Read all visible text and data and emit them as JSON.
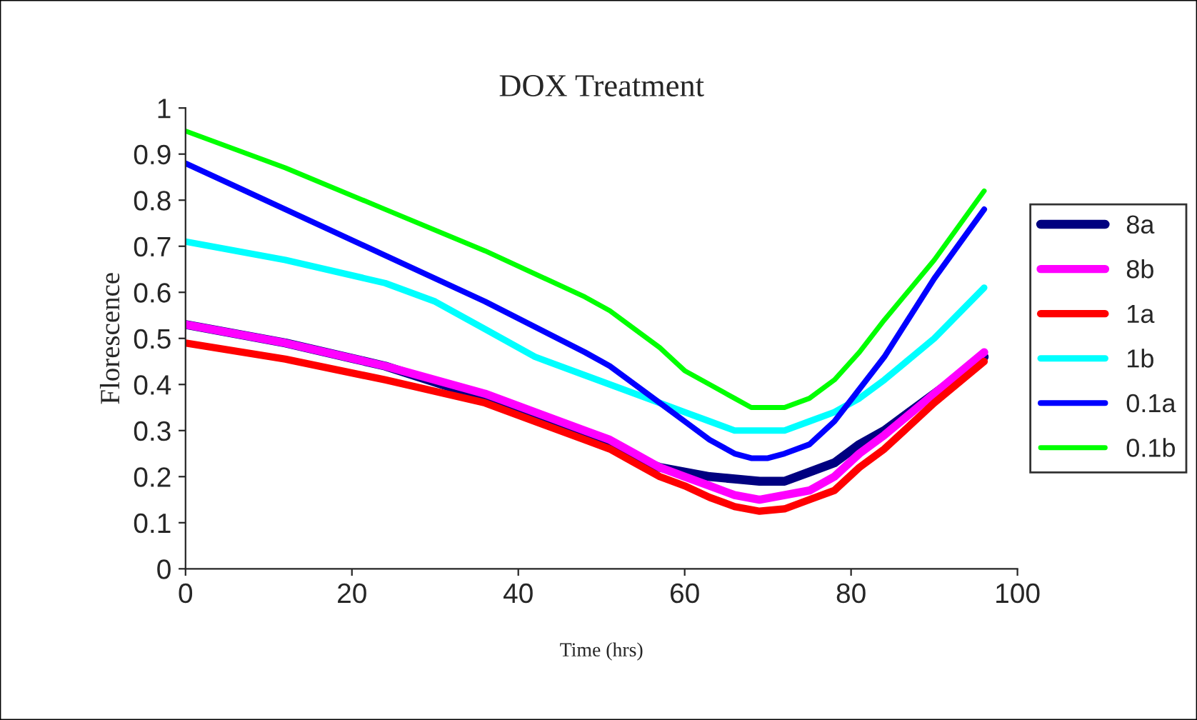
{
  "chart_data": {
    "type": "line",
    "title": "DOX Treatment",
    "xlabel": "Time (hrs)",
    "ylabel": "Florescence",
    "xlim": [
      0,
      100
    ],
    "xticks": [
      0,
      20,
      40,
      60,
      80,
      100
    ],
    "ylim": [
      0,
      1
    ],
    "yticks": [
      0,
      0.1,
      0.2,
      0.3,
      0.4,
      0.5,
      0.6,
      0.7,
      0.8,
      0.9,
      1
    ],
    "grid": false,
    "legend": "right",
    "marker": "none",
    "line_style": "solid",
    "series": [
      {
        "name": "8a",
        "color": "#000080",
        "x": [
          0,
          12,
          24,
          36,
          48,
          51,
          54,
          57,
          60,
          63,
          66,
          69,
          72,
          75,
          78,
          81,
          84,
          90,
          96
        ],
        "values": [
          0.53,
          0.49,
          0.44,
          0.37,
          0.29,
          0.27,
          0.24,
          0.22,
          0.21,
          0.2,
          0.195,
          0.19,
          0.19,
          0.21,
          0.23,
          0.27,
          0.3,
          0.38,
          0.46
        ]
      },
      {
        "name": "8b",
        "color": "#ff00ff",
        "x": [
          0,
          12,
          24,
          36,
          48,
          51,
          54,
          57,
          60,
          63,
          66,
          69,
          72,
          75,
          78,
          81,
          84,
          90,
          96
        ],
        "values": [
          0.53,
          0.49,
          0.44,
          0.38,
          0.3,
          0.28,
          0.25,
          0.22,
          0.2,
          0.18,
          0.16,
          0.15,
          0.16,
          0.17,
          0.2,
          0.25,
          0.29,
          0.38,
          0.47
        ]
      },
      {
        "name": "1a",
        "color": "#ff0000",
        "x": [
          0,
          12,
          24,
          36,
          48,
          51,
          54,
          57,
          60,
          63,
          66,
          69,
          72,
          75,
          78,
          81,
          84,
          90,
          96
        ],
        "values": [
          0.49,
          0.455,
          0.41,
          0.36,
          0.28,
          0.26,
          0.23,
          0.2,
          0.18,
          0.155,
          0.135,
          0.125,
          0.13,
          0.15,
          0.17,
          0.22,
          0.26,
          0.36,
          0.45
        ]
      },
      {
        "name": "1b",
        "color": "#00ffff",
        "x": [
          0,
          12,
          24,
          30,
          36,
          42,
          48,
          54,
          60,
          63,
          66,
          70,
          72,
          75,
          78,
          81,
          84,
          90,
          96
        ],
        "values": [
          0.71,
          0.67,
          0.62,
          0.58,
          0.52,
          0.46,
          0.42,
          0.38,
          0.34,
          0.32,
          0.3,
          0.3,
          0.3,
          0.32,
          0.34,
          0.37,
          0.41,
          0.5,
          0.61
        ]
      },
      {
        "name": "0.1a",
        "color": "#0000ff",
        "x": [
          0,
          12,
          24,
          36,
          48,
          51,
          54,
          57,
          60,
          63,
          66,
          68,
          70,
          72,
          75,
          78,
          81,
          84,
          90,
          96
        ],
        "values": [
          0.88,
          0.78,
          0.68,
          0.58,
          0.47,
          0.44,
          0.4,
          0.36,
          0.32,
          0.28,
          0.25,
          0.24,
          0.24,
          0.25,
          0.27,
          0.32,
          0.39,
          0.46,
          0.63,
          0.78
        ]
      },
      {
        "name": "0.1b",
        "color": "#00ff00",
        "x": [
          0,
          12,
          24,
          36,
          48,
          51,
          54,
          57,
          60,
          63,
          66,
          68,
          70,
          72,
          75,
          78,
          81,
          84,
          90,
          96
        ],
        "values": [
          0.95,
          0.87,
          0.78,
          0.69,
          0.59,
          0.56,
          0.52,
          0.48,
          0.43,
          0.4,
          0.37,
          0.35,
          0.35,
          0.35,
          0.37,
          0.41,
          0.47,
          0.54,
          0.67,
          0.82
        ]
      }
    ]
  }
}
